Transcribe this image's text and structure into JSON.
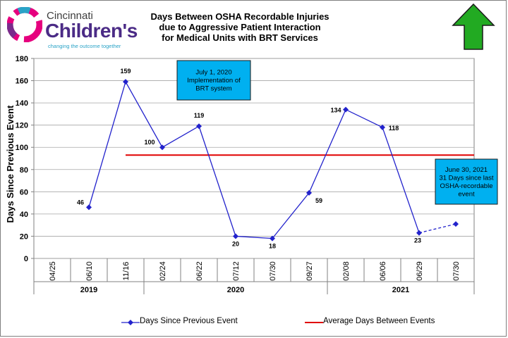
{
  "logo": {
    "line1": "Cincinnati",
    "line2": "Children's",
    "tagline": "changing the outcome together"
  },
  "title_lines": [
    "Days Between OSHA Recordable Injuries",
    "due to Aggressive Patient Interaction",
    "for Medical Units with BRT Services"
  ],
  "colors": {
    "series": "#2222cc",
    "average": "#e00000",
    "callout": "#00b0f0",
    "arrow": "#22aa22"
  },
  "trend_arrow_icon": "up-arrow-icon",
  "callouts": [
    "July 1, 2020\nImplementation of\nBRT system",
    "June 30, 2021\n31 Days since last\nOSHA-recordable\nevent"
  ],
  "chart_data": {
    "type": "line",
    "ylabel": "Days Since Previous Event",
    "ylim": [
      0,
      180
    ],
    "yticks": [
      0,
      20,
      40,
      60,
      80,
      100,
      120,
      140,
      160,
      180
    ],
    "categories": [
      "04/25",
      "06/10",
      "11/16",
      "02/24",
      "06/22",
      "07/12",
      "07/30",
      "09/27",
      "02/08",
      "06/06",
      "06/29",
      "07/30"
    ],
    "year_groups": [
      {
        "label": "2019",
        "count": 3
      },
      {
        "label": "2020",
        "count": 5
      },
      {
        "label": "2021",
        "count": 4
      }
    ],
    "series": [
      {
        "name": "Days Since Previous Event",
        "values": [
          null,
          46,
          159,
          100,
          119,
          20,
          18,
          59,
          134,
          118,
          23,
          31
        ],
        "data_labels": [
          null,
          "46",
          "159",
          "100",
          "119",
          "20",
          "18",
          "59",
          "134",
          "118",
          "23",
          null
        ],
        "dashed_last_segment": true
      },
      {
        "name": "Average Days Between Events",
        "value": 93,
        "from_category": "11/16"
      }
    ],
    "grid": "horizontal",
    "legend": "bottom"
  }
}
